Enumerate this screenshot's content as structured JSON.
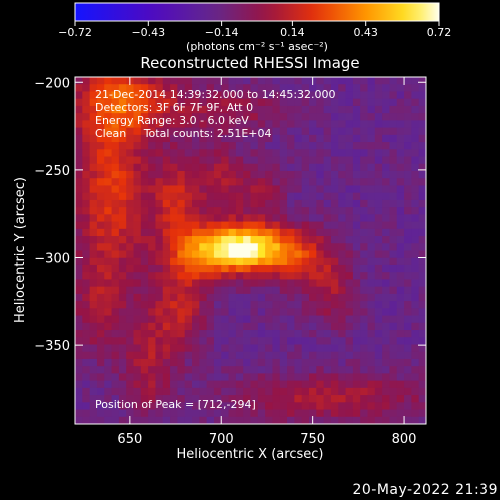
{
  "chart_data": {
    "type": "heatmap",
    "title": "Reconstructed RHESSI Image",
    "xlabel": "Heliocentric X (arcsec)",
    "ylabel": "Heliocentric Y (arcsec)",
    "xlim": [
      620,
      812
    ],
    "ylim": [
      -395,
      -197
    ],
    "x_ticks": [
      650,
      700,
      750,
      800
    ],
    "y_ticks": [
      -350,
      -300,
      -250,
      -200
    ],
    "colorbar": {
      "ticks": [
        -0.72,
        -0.43,
        -0.14,
        0.14,
        0.43,
        0.72
      ],
      "tick_labels": [
        "−0.72",
        "−0.43",
        "−0.14",
        "0.14",
        "0.43",
        "0.72"
      ],
      "label": "(photons cm⁻² s⁻¹ asec⁻²)",
      "range": [
        -0.72,
        0.72
      ]
    },
    "info_lines": [
      "21-Dec-2014 14:39:32.000 to 14:45:32.000",
      "Detectors: 3F 6F 7F 9F, Att 0",
      "Energy Range: 3.0 - 6.0 keV",
      "Clean     Total counts: 2.51E+04"
    ],
    "peak_label": "Position of Peak = [712,-294]",
    "peak": [
      712,
      -294
    ],
    "sources": [
      {
        "x": 712,
        "y": -294,
        "amplitude": 0.72,
        "sigma_x": 14,
        "sigma_y": 9
      },
      {
        "x": 690,
        "y": -298,
        "amplitude": 0.45,
        "sigma_x": 14,
        "sigma_y": 11
      },
      {
        "x": 738,
        "y": -298,
        "amplitude": 0.4,
        "sigma_x": 14,
        "sigma_y": 11
      },
      {
        "x": 676,
        "y": -268,
        "amplitude": 0.32,
        "sigma_x": 9,
        "sigma_y": 18
      },
      {
        "x": 700,
        "y": -255,
        "amplitude": 0.22,
        "sigma_x": 9,
        "sigma_y": 14
      },
      {
        "x": 722,
        "y": -262,
        "amplitude": 0.18,
        "sigma_x": 9,
        "sigma_y": 12
      },
      {
        "x": 760,
        "y": -318,
        "amplitude": 0.22,
        "sigma_x": 10,
        "sigma_y": 14
      },
      {
        "x": 678,
        "y": -330,
        "amplitude": 0.28,
        "sigma_x": 10,
        "sigma_y": 16
      },
      {
        "x": 660,
        "y": -360,
        "amplitude": 0.22,
        "sigma_x": 10,
        "sigma_y": 22
      },
      {
        "x": 640,
        "y": -260,
        "amplitude": 0.38,
        "sigma_x": 15,
        "sigma_y": 40
      },
      {
        "x": 648,
        "y": -210,
        "amplitude": 0.34,
        "sigma_x": 22,
        "sigma_y": 14
      },
      {
        "x": 706,
        "y": -216,
        "amplitude": 0.18,
        "sigma_x": 22,
        "sigma_y": 9
      },
      {
        "x": 632,
        "y": -330,
        "amplitude": 0.18,
        "sigma_x": 10,
        "sigma_y": 18
      },
      {
        "x": 760,
        "y": -380,
        "amplitude": 0.24,
        "sigma_x": 40,
        "sigma_y": 10
      }
    ],
    "background_level": -0.16
  },
  "footer": {
    "date": "20-May-2022 21:39"
  }
}
